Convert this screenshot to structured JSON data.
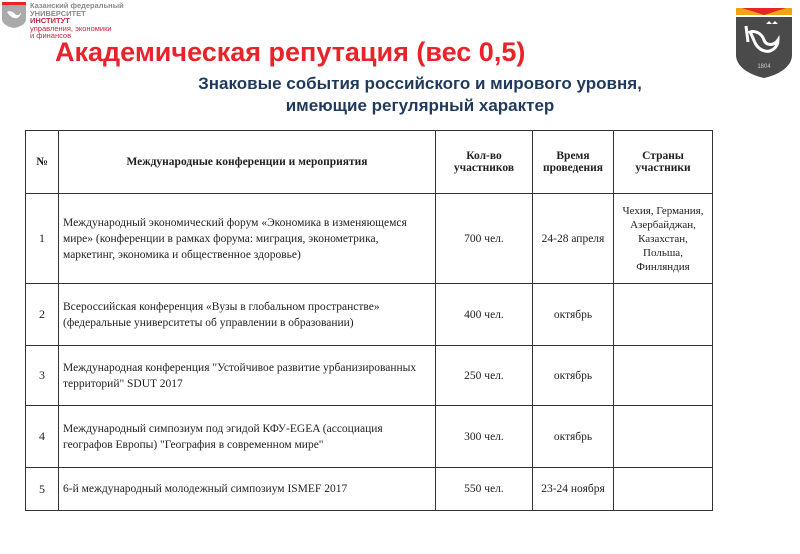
{
  "header": {
    "university": [
      "Казанский федеральный",
      "УНИВЕРСИТЕТ"
    ],
    "institute": [
      "ИНСТИТУТ",
      "управления, экономики",
      "и финансов"
    ],
    "emblem_year": "1804",
    "title": "Академическая репутация (вес 0,5)",
    "subtitle": [
      "Знаковые события российского и мирового уровня,",
      "имеющие регулярный характер"
    ]
  },
  "colors": {
    "title": "#e8232a",
    "subtitle": "#1f3a5c",
    "institute": "#c8283c"
  },
  "table": {
    "headers": [
      "№",
      "Международные конференции и мероприятия",
      "Кол-во участников",
      "Время проведения",
      "Страны участники"
    ],
    "rows": [
      {
        "num": "1",
        "event": "Международный экономический форум «Экономика в изменяющемся мире» (конференции в рамках форума: миграция, эконометрика, маркетинг, экономика и общественное здоровье)",
        "count": "700 чел.",
        "time": "24-28 апреля",
        "countries": "Чехия, Германия, Азербайджан, Казахстан, Польша, Финляндия"
      },
      {
        "num": "2",
        "event": "Всероссийская конференция «Вузы в глобальном пространстве» (федеральные университеты об управлении в образовании)",
        "count": "400 чел.",
        "time": "октябрь",
        "countries": ""
      },
      {
        "num": "3",
        "event": "Международная конференция \"Устойчивое развитие урбанизированных территорий\" SDUT 2017",
        "count": "250 чел.",
        "time": "октябрь",
        "countries": ""
      },
      {
        "num": "4",
        "event": "Международный симпозиум  под эгидой КФУ-EGEA (ассоциация  географов Европы) \"География в современном мире\"",
        "count": "300 чел.",
        "time": "октябрь",
        "countries": ""
      },
      {
        "num": "5",
        "event": "6-й международный молодежный симпозиум ISMEF 2017",
        "count": "550 чел.",
        "time": "23-24 ноября",
        "countries": ""
      }
    ]
  }
}
